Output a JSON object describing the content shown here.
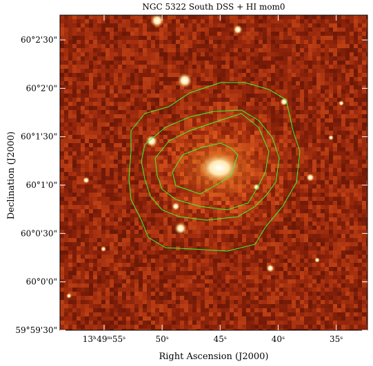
{
  "chart_data": {
    "type": "image",
    "title": "NGC 5322 South DSS + HI mom0",
    "xlabel": "Right Ascension (J2000)",
    "ylabel": "Declination (J2000)",
    "xlim": [
      207.495,
      207.3846
    ],
    "ylim": [
      59.991667,
      60.04594
    ],
    "xticks": [
      {
        "value": 207.479167,
        "label": "13ʰ49ᵐ55ˢ"
      },
      {
        "value": 207.458333,
        "label": "50ˢ"
      },
      {
        "value": 207.4375,
        "label": "45ˢ"
      },
      {
        "value": 207.416667,
        "label": "40ˢ"
      },
      {
        "value": 207.395833,
        "label": "35ˢ"
      }
    ],
    "yticks": [
      {
        "value": 59.991667,
        "label": "59°59'30\""
      },
      {
        "value": 60.0,
        "label": "60°0'0\""
      },
      {
        "value": 60.008333,
        "label": "60°0'30\""
      },
      {
        "value": 60.016667,
        "label": "60°1'0\""
      },
      {
        "value": 60.025,
        "label": "60°1'30\""
      },
      {
        "value": 60.033333,
        "label": "60°2'0\""
      },
      {
        "value": 60.041667,
        "label": "60°2'30\""
      }
    ],
    "contour_color": "#33ff33"
  }
}
